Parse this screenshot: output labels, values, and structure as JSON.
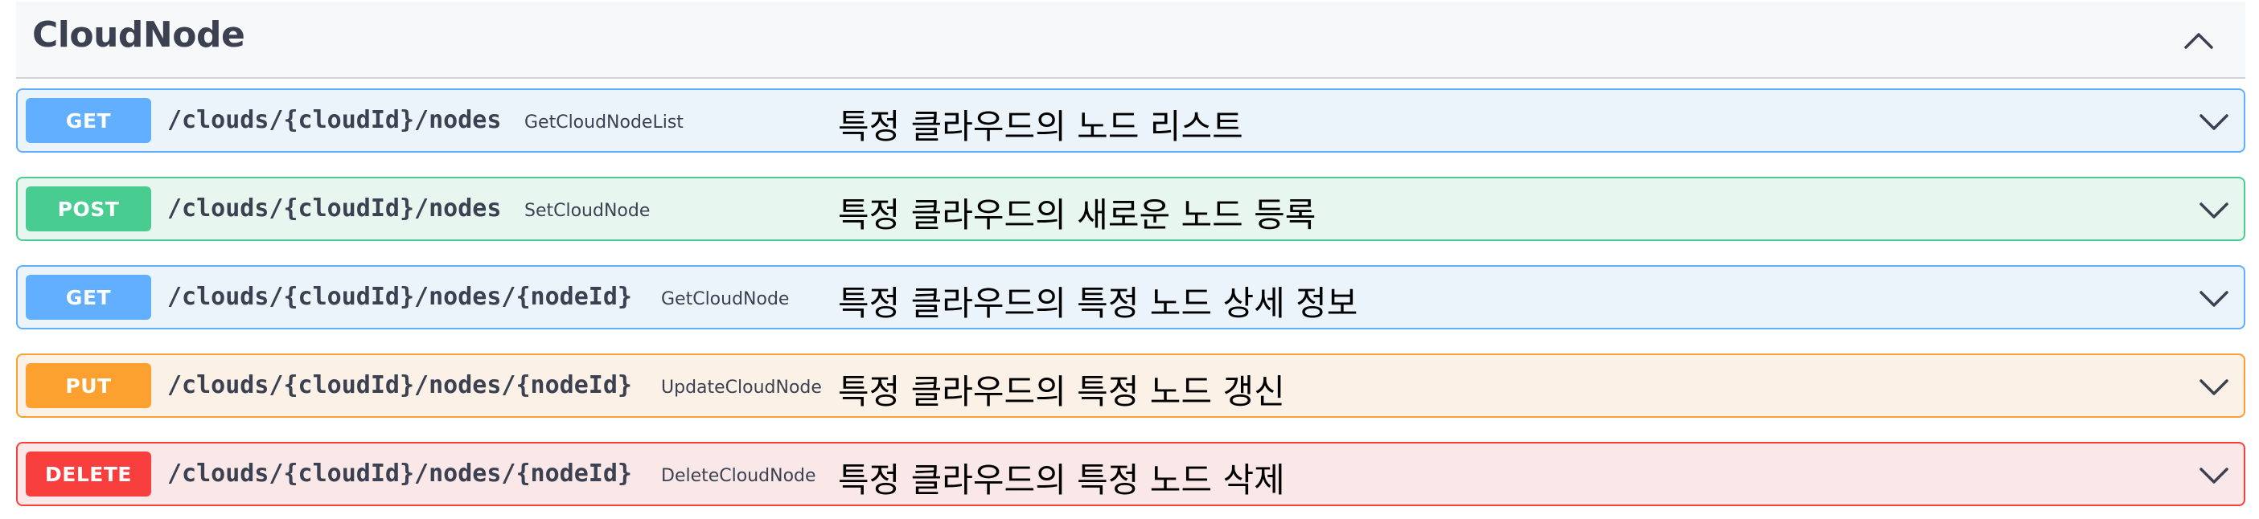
{
  "tag": {
    "title": "CloudNode"
  },
  "operations": [
    {
      "method": "GET",
      "path": "/clouds/{cloudId}/nodes",
      "operation_id": "GetCloudNodeList",
      "summary": "특정 클라우드의 노드 리스트"
    },
    {
      "method": "POST",
      "path": "/clouds/{cloudId}/nodes",
      "operation_id": "SetCloudNode",
      "summary": "특정 클라우드의 새로운 노드 등록"
    },
    {
      "method": "GET",
      "path": "/clouds/{cloudId}/nodes/{nodeId}",
      "operation_id": "GetCloudNode",
      "summary": "특정 클라우드의 특정 노드 상세 정보"
    },
    {
      "method": "PUT",
      "path": "/clouds/{cloudId}/nodes/{nodeId}",
      "operation_id": "UpdateCloudNode",
      "summary": "특정 클라우드의 특정 노드 갱신"
    },
    {
      "method": "DELETE",
      "path": "/clouds/{cloudId}/nodes/{nodeId}",
      "operation_id": "DeleteCloudNode",
      "summary": "특정 클라우드의 특정 노드 삭제"
    }
  ],
  "colors": {
    "get": "#61affe",
    "post": "#49cc90",
    "put": "#fca130",
    "delete": "#f93e3e",
    "text": "#3b4151"
  },
  "icons": {
    "collapse": "chevron-up-icon",
    "expand": "chevron-down-icon"
  }
}
